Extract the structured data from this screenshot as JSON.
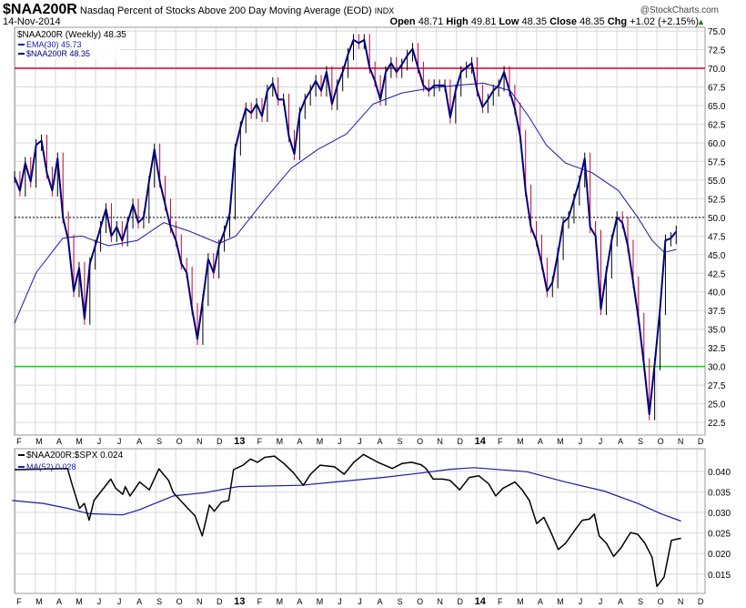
{
  "header": {
    "symbol": "$NAA200R",
    "title": "Nasdaq Percent of Stocks Above 200 Day Moving Average (EOD)",
    "exchange": "INDX",
    "watermark": "@StockCharts.com",
    "date": "14-Nov-2014",
    "open_label": "Open",
    "open": "48.71",
    "high_label": "High",
    "high": "49.81",
    "low_label": "Low",
    "low": "48.35",
    "close_label": "Close",
    "close": "48.35",
    "chg_label": "Chg",
    "chg": "+1.02 (+2.15%)"
  },
  "colors": {
    "price": "#000080",
    "ema": "#1a1aa8",
    "ratio": "#000000",
    "ma": "#1a1aa8",
    "red_line": "#cc0033",
    "green_line": "#00dd00",
    "grid": "#d8d8d8"
  },
  "chart_data": [
    {
      "type": "line",
      "title": "$NAA200R (Weekly) 48.35",
      "legend": [
        "$NAA200R (Weekly) 48.35",
        "EMA(30) 45.73",
        "$NAA200R 48.35"
      ],
      "legend_placement": "top-left",
      "x_range_years": [
        2012.08,
        2014.95
      ],
      "ylim": [
        20.8,
        75.5
      ],
      "yticks": [
        "75.0",
        "72.5",
        "70.0",
        "67.5",
        "65.0",
        "62.5",
        "60.0",
        "57.5",
        "55.0",
        "52.5",
        "50.0",
        "47.5",
        "45.0",
        "42.5",
        "40.0",
        "37.5",
        "35.0",
        "32.5",
        "30.0",
        "27.5",
        "25.0",
        "22.5"
      ],
      "reference_lines": [
        {
          "value": 70,
          "color": "red"
        },
        {
          "value": 50,
          "style": "dotted"
        },
        {
          "value": 30,
          "color": "green"
        }
      ],
      "close_series": {
        "x_start": 2012.08,
        "x_end": 2014.83,
        "values": [
          55.4,
          53.6,
          57.3,
          54.8,
          59.7,
          60.3,
          56,
          53.6,
          57.9,
          50,
          46.9,
          40.1,
          43.2,
          36.4,
          43.8,
          46.2,
          48.7,
          51.1,
          47.5,
          48.7,
          46.9,
          49.3,
          51.7,
          49.3,
          50,
          54.8,
          59.1,
          54.8,
          51.7,
          48.7,
          46.9,
          43.8,
          42.6,
          37.7,
          33.7,
          38.9,
          44.4,
          42.6,
          46.2,
          48.1,
          50.5,
          59.1,
          62.1,
          64.6,
          64,
          65.2,
          63.6,
          67,
          68,
          65.8,
          65.8,
          60.9,
          58.5,
          64,
          65.8,
          67,
          68.3,
          67,
          69.5,
          65.2,
          67.7,
          69.5,
          71.9,
          73.8,
          73.4,
          73.8,
          70.1,
          68.3,
          65.8,
          69.5,
          70.7,
          69.5,
          70.5,
          71.7,
          72.6,
          70.1,
          67.7,
          67,
          67.7,
          67.7,
          67.7,
          63.4,
          67,
          69.5,
          70.1,
          70.7,
          67,
          64.8,
          65.8,
          67,
          67.7,
          69.5,
          67,
          64.6,
          60.9,
          53.6,
          48.7,
          46.9,
          43.8,
          40.1,
          41.3,
          45.1,
          49.3,
          50,
          52.4,
          54.8,
          57.9,
          48.7,
          47.5,
          37.7,
          42.6,
          46.9,
          50,
          49.3,
          46.2,
          41.3,
          36.4,
          30.3,
          23.6,
          30.3,
          37.7,
          46.9,
          47.2,
          48.1
        ]
      },
      "ema30": [
        [
          2012.08,
          35.8
        ],
        [
          2012.17,
          42.6
        ],
        [
          2012.28,
          47.2
        ],
        [
          2012.36,
          47.5
        ],
        [
          2012.47,
          46.2
        ],
        [
          2012.59,
          46.9
        ],
        [
          2012.7,
          49.3
        ],
        [
          2012.81,
          48.1
        ],
        [
          2012.93,
          46.5
        ],
        [
          2013.0,
          47.5
        ],
        [
          2013.12,
          52.4
        ],
        [
          2013.23,
          56.6
        ],
        [
          2013.34,
          59.1
        ],
        [
          2013.46,
          61.2
        ],
        [
          2013.57,
          65.2
        ],
        [
          2013.69,
          66.7
        ],
        [
          2013.8,
          67.3
        ],
        [
          2013.91,
          67.7
        ],
        [
          2014.03,
          68
        ],
        [
          2014.14,
          67
        ],
        [
          2014.22,
          63.4
        ],
        [
          2014.29,
          59.7
        ],
        [
          2014.37,
          57.3
        ],
        [
          2014.48,
          56
        ],
        [
          2014.59,
          53.6
        ],
        [
          2014.67,
          50
        ],
        [
          2014.73,
          46.9
        ],
        [
          2014.78,
          45.3
        ],
        [
          2014.83,
          45.7
        ]
      ]
    },
    {
      "type": "line",
      "legend": [
        "$NAA200R:$SPX 0.024",
        "MA(52) 0.028"
      ],
      "legend_placement": "top-left",
      "x_range_years": [
        2012.08,
        2014.95
      ],
      "ylim": [
        0.0103,
        0.0455
      ],
      "yticks": [
        "0.040",
        "0.035",
        "0.030",
        "0.025",
        "0.020",
        "0.015"
      ],
      "ratio": [
        [
          2012.08,
          0.0404
        ],
        [
          2012.3,
          0.0407
        ],
        [
          2012.32,
          0.0366
        ],
        [
          2012.35,
          0.031
        ],
        [
          2012.37,
          0.0322
        ],
        [
          2012.39,
          0.0281
        ],
        [
          2012.41,
          0.0329
        ],
        [
          2012.48,
          0.0381
        ],
        [
          2012.5,
          0.0359
        ],
        [
          2012.53,
          0.0344
        ],
        [
          2012.54,
          0.0363
        ],
        [
          2012.56,
          0.034
        ],
        [
          2012.6,
          0.0374
        ],
        [
          2012.64,
          0.0355
        ],
        [
          2012.68,
          0.0406
        ],
        [
          2012.72,
          0.0378
        ],
        [
          2012.74,
          0.0348
        ],
        [
          2012.8,
          0.031
        ],
        [
          2012.83,
          0.0292
        ],
        [
          2012.86,
          0.0243
        ],
        [
          2012.89,
          0.0318
        ],
        [
          2012.91,
          0.0303
        ],
        [
          2012.94,
          0.0325
        ],
        [
          2012.97,
          0.0329
        ],
        [
          2012.99,
          0.0404
        ],
        [
          2013.03,
          0.0415
        ],
        [
          2013.06,
          0.043
        ],
        [
          2013.09,
          0.0422
        ],
        [
          2013.12,
          0.0434
        ],
        [
          2013.16,
          0.0437
        ],
        [
          2013.2,
          0.0419
        ],
        [
          2013.24,
          0.0396
        ],
        [
          2013.28,
          0.0366
        ],
        [
          2013.31,
          0.0393
        ],
        [
          2013.35,
          0.0415
        ],
        [
          2013.41,
          0.0411
        ],
        [
          2013.45,
          0.0393
        ],
        [
          2013.49,
          0.0422
        ],
        [
          2013.53,
          0.0441
        ],
        [
          2013.59,
          0.0422
        ],
        [
          2013.65,
          0.0407
        ],
        [
          2013.69,
          0.0419
        ],
        [
          2013.73,
          0.0422
        ],
        [
          2013.77,
          0.0416
        ],
        [
          2013.79,
          0.0407
        ],
        [
          2013.82,
          0.0381
        ],
        [
          2013.86,
          0.0381
        ],
        [
          2013.89,
          0.0378
        ],
        [
          2013.93,
          0.0355
        ],
        [
          2013.97,
          0.0385
        ],
        [
          2014.01,
          0.0389
        ],
        [
          2014.05,
          0.037
        ],
        [
          2014.08,
          0.034
        ],
        [
          2014.11,
          0.0359
        ],
        [
          2014.16,
          0.0374
        ],
        [
          2014.19,
          0.0355
        ],
        [
          2014.22,
          0.0329
        ],
        [
          2014.25,
          0.0273
        ],
        [
          2014.28,
          0.0288
        ],
        [
          2014.31,
          0.0251
        ],
        [
          2014.34,
          0.021
        ],
        [
          2014.37,
          0.0225
        ],
        [
          2014.41,
          0.0258
        ],
        [
          2014.44,
          0.0281
        ],
        [
          2014.47,
          0.0284
        ],
        [
          2014.49,
          0.0296
        ],
        [
          2014.51,
          0.0243
        ],
        [
          2014.54,
          0.0225
        ],
        [
          2014.57,
          0.0193
        ],
        [
          2014.6,
          0.0213
        ],
        [
          2014.64,
          0.0251
        ],
        [
          2014.67,
          0.0247
        ],
        [
          2014.7,
          0.0225
        ],
        [
          2014.73,
          0.0191
        ],
        [
          2014.75,
          0.012
        ],
        [
          2014.78,
          0.0143
        ],
        [
          2014.81,
          0.0232
        ],
        [
          2014.84,
          0.0236
        ],
        [
          2014.85,
          0.0237
        ]
      ],
      "ma52": [
        [
          2012.07,
          0.0329
        ],
        [
          2012.2,
          0.0322
        ],
        [
          2012.3,
          0.031
        ],
        [
          2012.39,
          0.0297
        ],
        [
          2012.53,
          0.0294
        ],
        [
          2012.6,
          0.0307
        ],
        [
          2012.74,
          0.034
        ],
        [
          2012.87,
          0.0348
        ],
        [
          2013.01,
          0.0363
        ],
        [
          2013.27,
          0.0366
        ],
        [
          2013.41,
          0.0374
        ],
        [
          2013.61,
          0.0385
        ],
        [
          2013.77,
          0.0396
        ],
        [
          2013.89,
          0.0405
        ],
        [
          2013.99,
          0.0409
        ],
        [
          2014.21,
          0.0399
        ],
        [
          2014.37,
          0.0374
        ],
        [
          2014.53,
          0.0352
        ],
        [
          2014.67,
          0.0322
        ],
        [
          2014.77,
          0.0296
        ],
        [
          2014.85,
          0.0279
        ]
      ]
    }
  ],
  "x_axis": {
    "month_labels": [
      "F",
      "M",
      "A",
      "M",
      "J",
      "J",
      "A",
      "S",
      "O",
      "N",
      "D",
      "13",
      "F",
      "M",
      "A",
      "M",
      "J",
      "J",
      "A",
      "S",
      "O",
      "N",
      "D",
      "14",
      "F",
      "M",
      "A",
      "M",
      "J",
      "J",
      "A",
      "S",
      "O",
      "N",
      "D"
    ],
    "first_month_year": 2012.0833
  }
}
